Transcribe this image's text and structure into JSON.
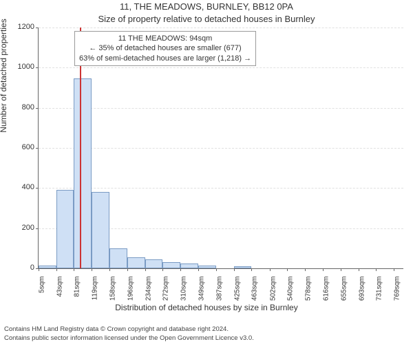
{
  "title": "11, THE MEADOWS, BURNLEY, BB12 0PA",
  "subtitle": "Size of property relative to detached houses in Burnley",
  "ylabel": "Number of detached properties",
  "xlabel": "Distribution of detached houses by size in Burnley",
  "annotation": {
    "line1": "11 THE MEADOWS: 94sqm",
    "line2": "← 35% of detached houses are smaller (677)",
    "line3": "63% of semi-detached houses are larger (1,218) →"
  },
  "footer": {
    "line1": "Contains HM Land Registry data © Crown copyright and database right 2024.",
    "line2": "Contains public sector information licensed under the Open Government Licence v3.0."
  },
  "chart": {
    "type": "bar",
    "ylim": [
      0,
      1200
    ],
    "ytick_step": 200,
    "yticks": [
      0,
      200,
      400,
      600,
      800,
      1000,
      1200
    ],
    "bar_fill": "#cfe0f5",
    "bar_border": "#7a9bc4",
    "marker_color": "#cc3333",
    "grid_color": "#e0e0e0",
    "background_color": "#ffffff",
    "marker_x_value": 94,
    "x_min": 5,
    "x_max": 790,
    "bar_width_units": 38,
    "categories": [
      "5sqm",
      "43sqm",
      "81sqm",
      "119sqm",
      "158sqm",
      "196sqm",
      "234sqm",
      "272sqm",
      "310sqm",
      "349sqm",
      "387sqm",
      "425sqm",
      "463sqm",
      "502sqm",
      "540sqm",
      "578sqm",
      "616sqm",
      "655sqm",
      "693sqm",
      "731sqm",
      "769sqm"
    ],
    "x_starts": [
      5,
      43,
      81,
      119,
      158,
      196,
      234,
      272,
      310,
      349,
      387,
      425,
      463,
      502,
      540,
      578,
      616,
      655,
      693,
      731,
      769
    ],
    "values": [
      15,
      390,
      945,
      380,
      100,
      55,
      45,
      30,
      25,
      15,
      0,
      10,
      0,
      0,
      0,
      0,
      0,
      0,
      0,
      0,
      0
    ],
    "title_fontsize": 13,
    "label_fontsize": 12,
    "tick_fontsize": 11
  }
}
